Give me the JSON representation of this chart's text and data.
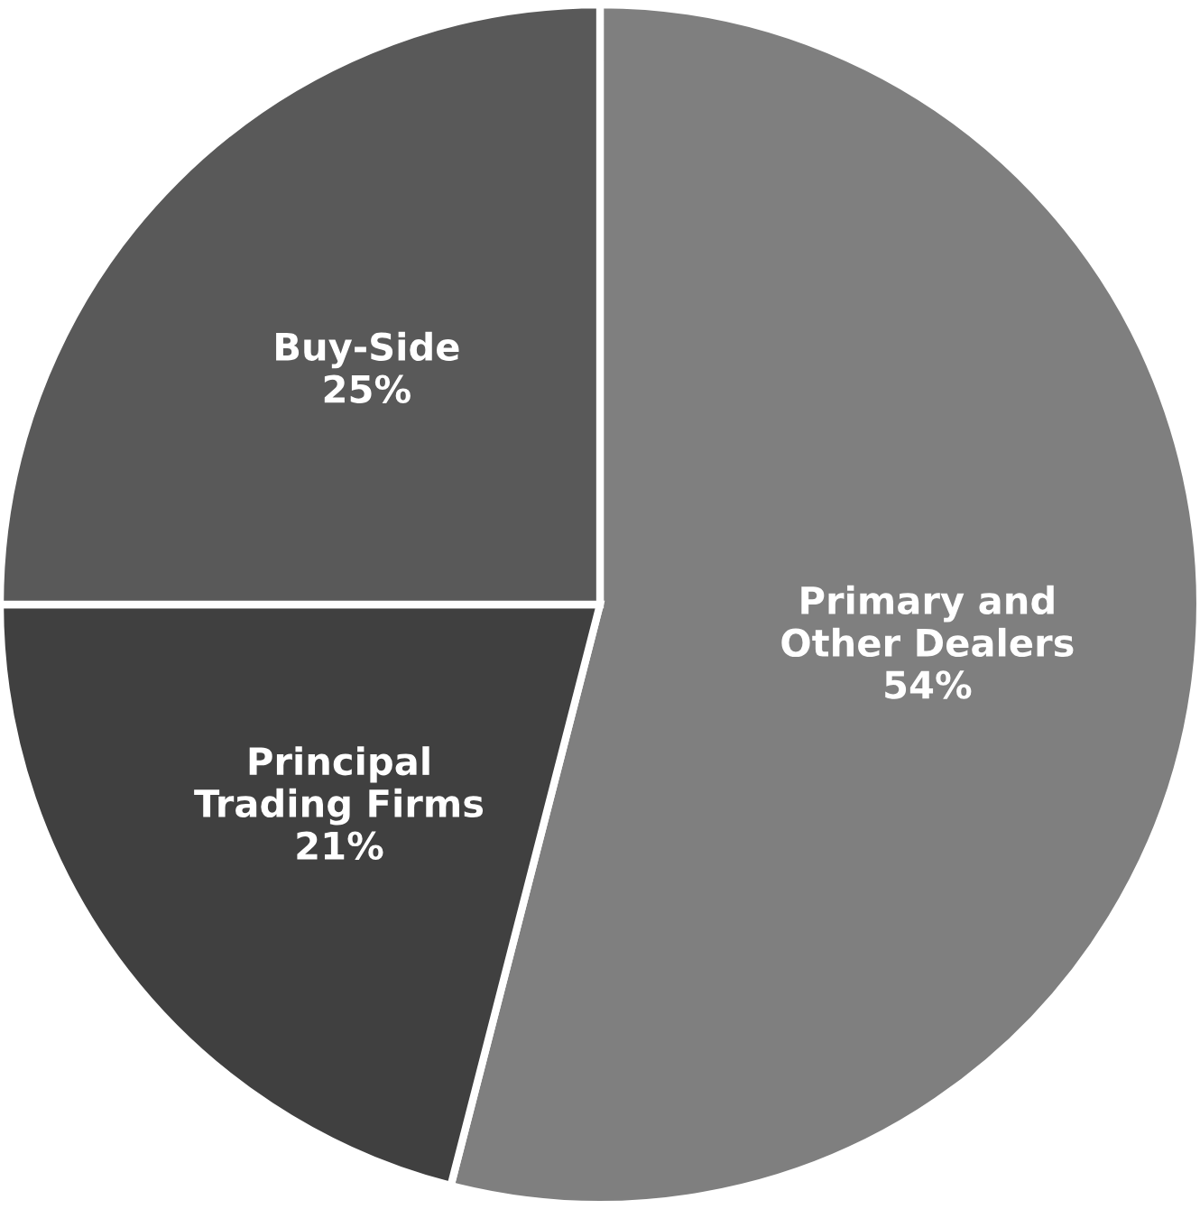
{
  "chart_data": {
    "type": "pie",
    "categories": [
      "Primary and\nOther Dealers",
      "Principal\nTrading Firms",
      "Buy-Side"
    ],
    "values": [
      54,
      21,
      25
    ],
    "value_labels": [
      "54%",
      "21%",
      "25%"
    ],
    "colors": [
      "#7f7f7f",
      "#404040",
      "#595959"
    ]
  }
}
